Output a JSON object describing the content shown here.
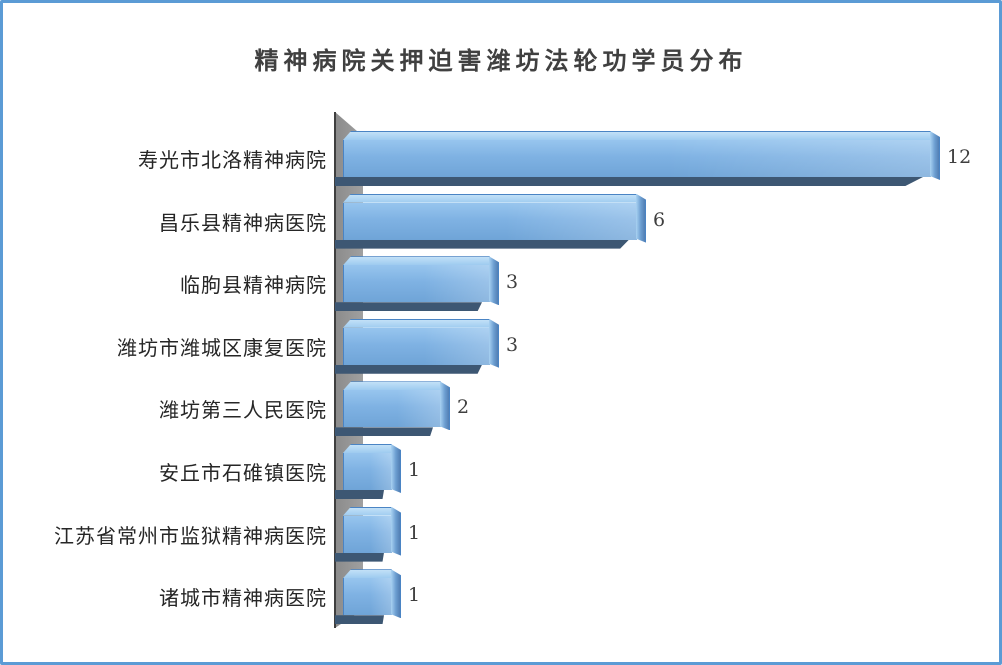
{
  "chart_data": {
    "type": "bar",
    "orientation": "horizontal",
    "title": "精神病院关押迫害潍坊法轮功学员分布",
    "categories": [
      "寿光市北洛精神病院",
      "昌乐县精神病医院",
      "临朐县精神病院",
      "潍坊市潍城区康复医院",
      "潍坊第三人民医院",
      "安丘市石碓镇医院",
      "江苏省常州市监狱精神病医院",
      "诸城市精神病医院"
    ],
    "values": [
      12,
      6,
      3,
      3,
      2,
      1,
      1,
      1
    ],
    "data_labels": [
      12,
      6,
      3,
      3,
      2,
      1,
      1,
      1
    ],
    "xlim": [
      0,
      12.5
    ],
    "grid": false,
    "legend": false,
    "style": "3d-beveled-bars",
    "colors": {
      "bar_face": "#7fb2e3",
      "bar_top_bevel": "#b3d8f4",
      "bar_bottom_shadow": "#3d5773",
      "bar_outline": "#4a84c4",
      "wall": "#989898",
      "axis_line": "#3f3f3f",
      "title_text": "#404040",
      "label_text": "#262626",
      "value_text": "#3f3f3f",
      "frame_border": "#5b9bd5"
    }
  }
}
